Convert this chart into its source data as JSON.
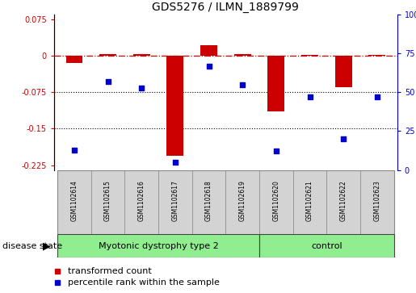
{
  "title": "GDS5276 / ILMN_1889799",
  "samples": [
    "GSM1102614",
    "GSM1102615",
    "GSM1102616",
    "GSM1102617",
    "GSM1102618",
    "GSM1102619",
    "GSM1102620",
    "GSM1102621",
    "GSM1102622",
    "GSM1102623"
  ],
  "red_values": [
    -0.015,
    0.004,
    0.004,
    -0.205,
    0.022,
    0.004,
    -0.115,
    0.002,
    -0.065,
    0.002
  ],
  "blue_values": [
    0.13,
    0.57,
    0.53,
    0.05,
    0.67,
    0.55,
    0.12,
    0.47,
    0.2,
    0.47
  ],
  "disease_groups": [
    {
      "label": "Myotonic dystrophy type 2",
      "start": 0,
      "end": 6,
      "color": "#90EE90"
    },
    {
      "label": "control",
      "start": 6,
      "end": 10,
      "color": "#90EE90"
    }
  ],
  "ylim_left": [
    -0.235,
    0.085
  ],
  "ylim_right": [
    0,
    1.0
  ],
  "yticks_left": [
    0.075,
    0,
    -0.075,
    -0.15,
    -0.225
  ],
  "yticks_right": [
    1.0,
    0.75,
    0.5,
    0.25,
    0
  ],
  "ytick_labels_right": [
    "100%",
    "75",
    "50",
    "25",
    "0"
  ],
  "ytick_labels_left": [
    "0.075",
    "0",
    "-0.075",
    "-0.15",
    "-0.225"
  ],
  "hline_y": 0,
  "dotted_lines": [
    -0.075,
    -0.15
  ],
  "red_color": "#CC0000",
  "blue_color": "#0000CC",
  "left_axis_color": "#CC0000",
  "right_axis_color": "#0000CC",
  "legend_red_label": "transformed count",
  "legend_blue_label": "percentile rank within the sample",
  "disease_state_label": "disease state",
  "group_separator": 6,
  "label_bg_color": "#D3D3D3",
  "bar_width": 0.5,
  "n_samples": 10
}
